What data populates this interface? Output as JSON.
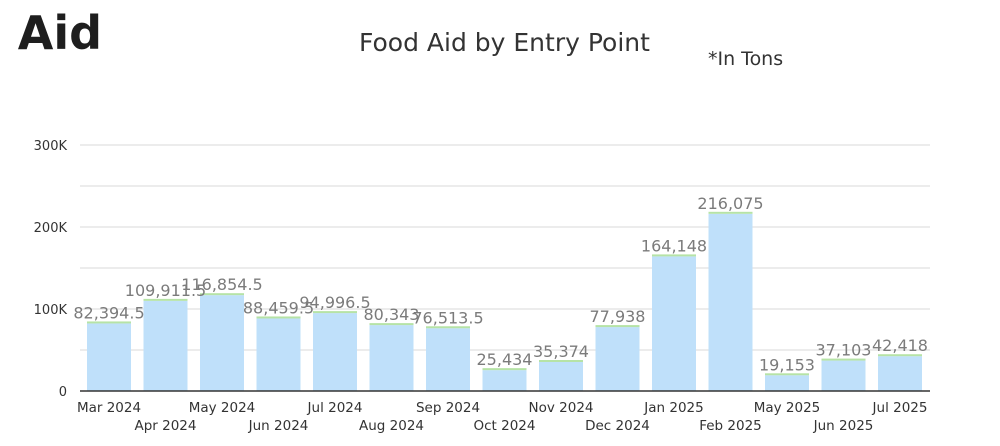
{
  "page": {
    "heading": "l Aid"
  },
  "chart_data": {
    "type": "bar",
    "title": "Food Aid by Entry Point",
    "note": "*In Tons",
    "xlabel": "",
    "ylabel": "",
    "ylim": [
      0,
      300000
    ],
    "grid": true,
    "y_ticks": [
      {
        "value": 0,
        "label": "0"
      },
      {
        "value": 100000,
        "label": "100K"
      },
      {
        "value": 200000,
        "label": "200K"
      },
      {
        "value": 300000,
        "label": "300K"
      }
    ],
    "categories": [
      "Mar 2024",
      "Apr 2024",
      "May 2024",
      "Jun 2024",
      "Jul 2024",
      "Aug 2024",
      "Sep 2024",
      "Oct 2024",
      "Nov 2024",
      "Dec 2024",
      "Jan 2025",
      "Feb 2025",
      "May 2025",
      "Jun 2025",
      "Jul 2025"
    ],
    "values": [
      82394.5,
      109911.5,
      116854.5,
      88459.5,
      94996.5,
      80343,
      76513.5,
      25434,
      35374,
      77938,
      164148,
      216075,
      19153,
      37103,
      42418
    ],
    "data_labels": [
      "82,394.5",
      "109,911.5",
      "116,854.5",
      "88,459.5",
      "94,996.5",
      "80,343",
      "76,513.5",
      "25,434",
      "35,374",
      "77,938",
      "164,148",
      "216,075",
      "19,153",
      "37,103",
      "42,418"
    ],
    "colors": {
      "bar": "#bfe0fa",
      "accent_top": "#b6e3a6",
      "gridline": "#d9d9d9",
      "axis": "#333333",
      "label": "#7b7b7b"
    }
  }
}
